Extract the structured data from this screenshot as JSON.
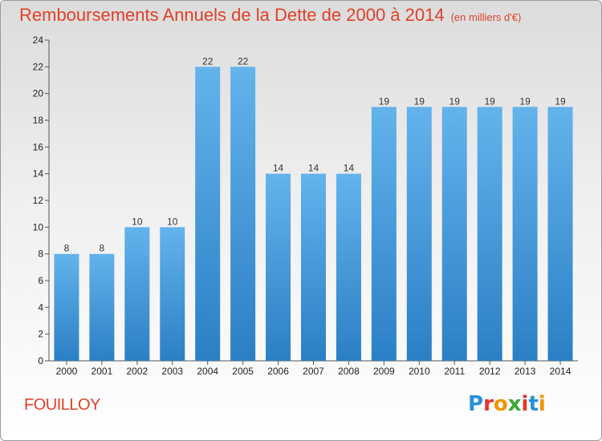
{
  "title": {
    "main": "Remboursements Annuels de la Dette de 2000 à 2014",
    "unit": "(en milliers d'€)"
  },
  "commune": "FOUILLOY",
  "brand": {
    "name": "Proxiti",
    "letter_colors": [
      "#2a8fd8",
      "#e6332a",
      "#f29400",
      "#3aa935",
      "#e6332a",
      "#2a8fd8",
      "#f29400"
    ]
  },
  "colors": {
    "title": "#e0402a",
    "bar_top": "#63b3ec",
    "bar_bottom": "#2b7fc4"
  },
  "chart_data": {
    "type": "bar",
    "title": "Remboursements Annuels de la Dette de 2000 à 2014",
    "categories": [
      "2000",
      "2001",
      "2002",
      "2003",
      "2004",
      "2005",
      "2006",
      "2007",
      "2008",
      "2009",
      "2010",
      "2011",
      "2012",
      "2013",
      "2014"
    ],
    "values": [
      8,
      8,
      10,
      10,
      22,
      22,
      14,
      14,
      14,
      19,
      19,
      19,
      19,
      19,
      19
    ],
    "ylim": [
      0,
      24
    ],
    "yticks": [
      0,
      2,
      4,
      6,
      8,
      10,
      12,
      14,
      16,
      18,
      20,
      22,
      24
    ],
    "xlabel": "",
    "ylabel": "",
    "grid": false,
    "data_labels": true
  }
}
